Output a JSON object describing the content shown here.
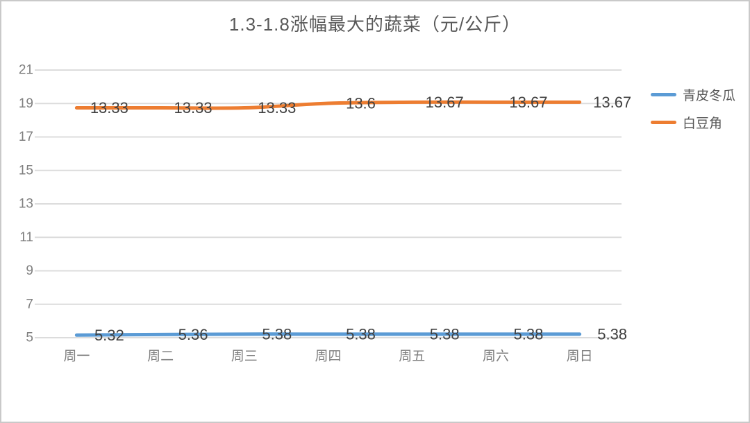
{
  "chart_data": {
    "type": "line",
    "title": "1.3-1.8涨幅最大的蔬菜（元/公斤）",
    "categories": [
      "周一",
      "周二",
      "周三",
      "周四",
      "周五",
      "周六",
      "周日"
    ],
    "series": [
      {
        "name": "青皮冬瓜",
        "color": "#5B9BD5",
        "values": [
          5.32,
          5.36,
          5.38,
          5.38,
          5.38,
          5.38,
          5.38
        ]
      },
      {
        "name": "白豆角",
        "color": "#ED7D31",
        "values": [
          13.33,
          13.33,
          13.33,
          13.6,
          13.67,
          13.67,
          13.67
        ]
      }
    ],
    "y_ticks": [
      21,
      19,
      17,
      15,
      13,
      11,
      9,
      7,
      5
    ],
    "ylim": [
      5,
      21
    ],
    "grid": "horizontal",
    "legend_position": "right",
    "data_labels": true,
    "smoothed_lines": true
  },
  "colors": {
    "background": "#FFFFFF",
    "frame_border": "#C9C9C9",
    "gridline": "#DCDCDC",
    "tick_label": "#7F7F7F",
    "data_label": "#404040",
    "title": "#595959",
    "legend_label": "#595959"
  }
}
